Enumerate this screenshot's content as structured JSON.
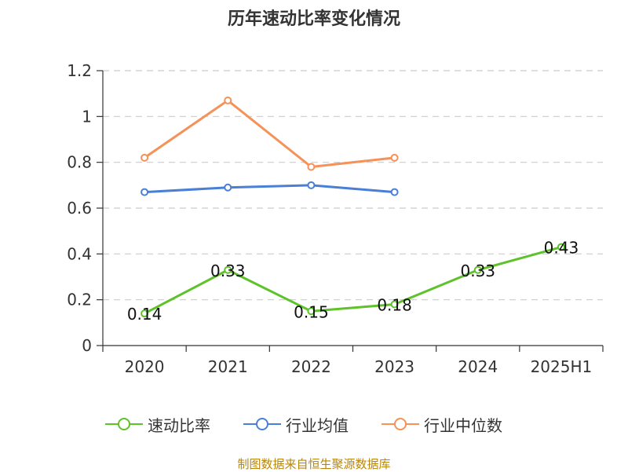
{
  "chart_data": {
    "type": "line",
    "title": "历年速动比率变化情况",
    "categories": [
      "2020",
      "2021",
      "2022",
      "2023",
      "2024",
      "2025H1"
    ],
    "ylim": [
      0,
      1.2
    ],
    "yticks": [
      "0",
      "0.2",
      "0.4",
      "0.6",
      "0.8",
      "1",
      "1.2"
    ],
    "grid": true,
    "legend_position": "bottom",
    "series": [
      {
        "name": "速动比率",
        "color": "#5ec22b",
        "values": [
          0.14,
          0.33,
          0.15,
          0.18,
          0.33,
          0.43
        ],
        "labels": [
          "0.14",
          "0.33",
          "0.15",
          "0.18",
          "0.33",
          "0.43"
        ]
      },
      {
        "name": "行业均值",
        "color": "#4a7fd6",
        "values": [
          0.67,
          0.69,
          0.7,
          0.67,
          null,
          null
        ]
      },
      {
        "name": "行业中位数",
        "color": "#f4925a",
        "values": [
          0.82,
          1.07,
          0.78,
          0.82,
          null,
          null
        ]
      }
    ]
  },
  "source": "制图数据来自恒生聚源数据库"
}
